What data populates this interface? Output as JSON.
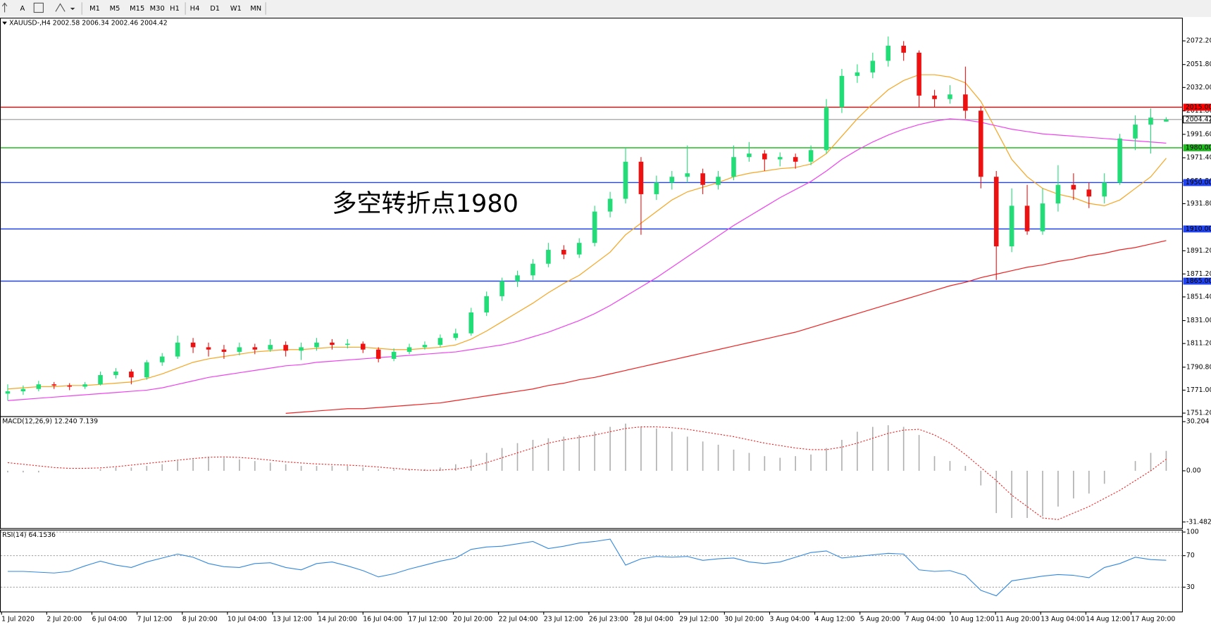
{
  "toolbar": {
    "font_button": "A",
    "timeframes": [
      "M1",
      "M5",
      "M15",
      "M30",
      "H1",
      "H4",
      "D1",
      "W1",
      "MN"
    ]
  },
  "chart_data": [
    {
      "type": "candlestick",
      "title": "XAUUSD-,H4  2002.58 2006.34 2002.46 2004.42",
      "up_color": "#22dd77",
      "down_color": "#ee1111",
      "candles": [
        [
          1768,
          1776,
          1762,
          1770
        ],
        [
          1770,
          1775,
          1767,
          1772
        ],
        [
          1772,
          1779,
          1770,
          1776
        ],
        [
          1776,
          1778,
          1772,
          1775
        ],
        [
          1775,
          1777,
          1771,
          1774
        ],
        [
          1774,
          1778,
          1772,
          1776
        ],
        [
          1776,
          1787,
          1775,
          1784
        ],
        [
          1784,
          1790,
          1781,
          1787
        ],
        [
          1787,
          1789,
          1776,
          1782
        ],
        [
          1782,
          1797,
          1780,
          1795
        ],
        [
          1795,
          1803,
          1792,
          1800
        ],
        [
          1800,
          1818,
          1798,
          1812
        ],
        [
          1812,
          1816,
          1803,
          1808
        ],
        [
          1808,
          1812,
          1800,
          1806
        ],
        [
          1806,
          1810,
          1798,
          1804
        ],
        [
          1804,
          1812,
          1801,
          1808
        ],
        [
          1808,
          1811,
          1802,
          1806
        ],
        [
          1806,
          1815,
          1804,
          1810
        ],
        [
          1810,
          1813,
          1800,
          1805
        ],
        [
          1805,
          1812,
          1797,
          1808
        ],
        [
          1808,
          1816,
          1805,
          1812
        ],
        [
          1812,
          1815,
          1806,
          1810
        ],
        [
          1810,
          1815,
          1807,
          1811
        ],
        [
          1811,
          1813,
          1803,
          1806
        ],
        [
          1806,
          1808,
          1795,
          1798
        ],
        [
          1798,
          1807,
          1796,
          1804
        ],
        [
          1804,
          1811,
          1802,
          1808
        ],
        [
          1808,
          1813,
          1806,
          1810
        ],
        [
          1810,
          1819,
          1808,
          1816
        ],
        [
          1816,
          1824,
          1814,
          1820
        ],
        [
          1820,
          1842,
          1818,
          1838
        ],
        [
          1838,
          1856,
          1835,
          1852
        ],
        [
          1852,
          1868,
          1848,
          1865
        ],
        [
          1865,
          1874,
          1860,
          1870
        ],
        [
          1870,
          1884,
          1866,
          1880
        ],
        [
          1880,
          1898,
          1877,
          1892
        ],
        [
          1892,
          1896,
          1884,
          1888
        ],
        [
          1888,
          1902,
          1885,
          1898
        ],
        [
          1898,
          1930,
          1895,
          1925
        ],
        [
          1925,
          1942,
          1920,
          1936
        ],
        [
          1936,
          1980,
          1932,
          1968
        ],
        [
          1968,
          1972,
          1905,
          1940
        ],
        [
          1940,
          1956,
          1935,
          1950
        ],
        [
          1950,
          1960,
          1944,
          1955
        ],
        [
          1955,
          1982,
          1950,
          1958
        ],
        [
          1958,
          1962,
          1940,
          1948
        ],
        [
          1948,
          1960,
          1944,
          1955
        ],
        [
          1955,
          1982,
          1952,
          1972
        ],
        [
          1972,
          1985,
          1968,
          1975
        ],
        [
          1975,
          1978,
          1960,
          1970
        ],
        [
          1970,
          1976,
          1964,
          1972
        ],
        [
          1972,
          1975,
          1962,
          1968
        ],
        [
          1968,
          1982,
          1965,
          1978
        ],
        [
          1978,
          2022,
          1975,
          2015
        ],
        [
          2015,
          2048,
          2010,
          2042
        ],
        [
          2042,
          2052,
          2036,
          2045
        ],
        [
          2045,
          2062,
          2040,
          2055
        ],
        [
          2055,
          2076,
          2050,
          2068
        ],
        [
          2068,
          2072,
          2055,
          2062
        ],
        [
          2062,
          2064,
          2015,
          2025
        ],
        [
          2025,
          2030,
          2015,
          2022
        ],
        [
          2022,
          2034,
          2018,
          2026
        ],
        [
          2026,
          2050,
          2005,
          2012
        ],
        [
          2012,
          2016,
          1945,
          1955
        ],
        [
          1955,
          1960,
          1866,
          1895
        ],
        [
          1895,
          1945,
          1890,
          1930
        ],
        [
          1930,
          1948,
          1905,
          1908
        ],
        [
          1908,
          1945,
          1905,
          1932
        ],
        [
          1932,
          1965,
          1925,
          1948
        ],
        [
          1948,
          1958,
          1935,
          1944
        ],
        [
          1944,
          1950,
          1928,
          1938
        ],
        [
          1938,
          1958,
          1932,
          1950
        ],
        [
          1950,
          1992,
          1948,
          1988
        ],
        [
          1988,
          2008,
          1978,
          2000
        ],
        [
          2000,
          2014,
          1975,
          2006
        ],
        [
          2002.58,
          2006.34,
          2002.46,
          2004.42
        ]
      ],
      "lines": [
        {
          "color": "#f5a623",
          "values": [
            1772,
            1773,
            1774,
            1774,
            1775,
            1775,
            1776,
            1777,
            1778,
            1781,
            1785,
            1790,
            1795,
            1798,
            1800,
            1802,
            1804,
            1805,
            1806,
            1806,
            1807,
            1808,
            1808,
            1808,
            1807,
            1806,
            1806,
            1807,
            1808,
            1810,
            1815,
            1822,
            1830,
            1838,
            1846,
            1855,
            1863,
            1870,
            1880,
            1890,
            1905,
            1915,
            1925,
            1935,
            1942,
            1946,
            1950,
            1955,
            1958,
            1960,
            1962,
            1963,
            1966,
            1975,
            1990,
            2005,
            2018,
            2030,
            2038,
            2043,
            2043,
            2041,
            2036,
            2020,
            1995,
            1970,
            1955,
            1945,
            1940,
            1937,
            1932,
            1930,
            1935,
            1945,
            1955,
            1971
          ]
        },
        {
          "color": "#ee44ee",
          "values": [
            1762,
            1763,
            1764,
            1765,
            1766,
            1767,
            1768,
            1769,
            1770,
            1771,
            1773,
            1776,
            1779,
            1782,
            1784,
            1786,
            1788,
            1790,
            1792,
            1793,
            1795,
            1796,
            1797,
            1798,
            1799,
            1800,
            1801,
            1802,
            1803,
            1804,
            1806,
            1808,
            1810,
            1813,
            1817,
            1821,
            1826,
            1831,
            1837,
            1844,
            1852,
            1860,
            1868,
            1877,
            1886,
            1895,
            1904,
            1913,
            1921,
            1929,
            1937,
            1944,
            1951,
            1960,
            1970,
            1978,
            1985,
            1991,
            1996,
            2000,
            2003,
            2005,
            2004,
            2002,
            1999,
            1996,
            1994,
            1992,
            1991,
            1990,
            1989,
            1988,
            1987,
            1986,
            1985,
            1984
          ]
        },
        {
          "color": "#ee2222",
          "values": [
            null,
            null,
            null,
            null,
            null,
            null,
            null,
            null,
            null,
            null,
            null,
            null,
            null,
            null,
            null,
            null,
            null,
            null,
            1751,
            1752,
            1753,
            1754,
            1755,
            1755,
            1756,
            1757,
            1758,
            1759,
            1760,
            1762,
            1764,
            1766,
            1768,
            1770,
            1772,
            1775,
            1777,
            1780,
            1782,
            1785,
            1788,
            1791,
            1794,
            1797,
            1800,
            1803,
            1806,
            1809,
            1812,
            1815,
            1818,
            1821,
            1825,
            1829,
            1833,
            1837,
            1841,
            1845,
            1849,
            1853,
            1857,
            1861,
            1864,
            1868,
            1871,
            1874,
            1877,
            1879,
            1882,
            1884,
            1887,
            1889,
            1892,
            1894,
            1897,
            1900
          ]
        }
      ],
      "levels": [
        {
          "value": 2015,
          "label": "2015.00",
          "color": "#ff0000"
        },
        {
          "value": 1980,
          "label": "1980.00",
          "color": "#22bb22"
        },
        {
          "value": 1950,
          "label": "1950.00",
          "color": "#2244ee"
        },
        {
          "value": 1910,
          "label": "1910.00",
          "color": "#2244ee"
        },
        {
          "value": 1865,
          "label": "1865.00",
          "color": "#2244ee"
        }
      ],
      "current_price": {
        "value": 2004.42,
        "label": "2004.42",
        "color": "#999999"
      },
      "annotation": "多空转折点1980",
      "ylim": [
        1749.2,
        2090.8
      ],
      "yticks": [
        {
          "value": 2072.2,
          "label": "2072.20"
        },
        {
          "value": 2051.8,
          "label": "2051.80"
        },
        {
          "value": 2032,
          "label": "2032.00"
        },
        {
          "value": 2011.8,
          "label": "2011.80"
        },
        {
          "value": 1991.6,
          "label": "1991.60"
        },
        {
          "value": 1971.4,
          "label": "1971.40"
        },
        {
          "value": 1951.2,
          "label": "1951.20"
        },
        {
          "value": 1931.8,
          "label": "1931.80"
        },
        {
          "value": 1891.2,
          "label": "1891.20"
        },
        {
          "value": 1871.2,
          "label": "1871.20"
        },
        {
          "value": 1851.4,
          "label": "1851.40"
        },
        {
          "value": 1831,
          "label": "1831.00"
        },
        {
          "value": 1811.2,
          "label": "1811.20"
        },
        {
          "value": 1790.8,
          "label": "1790.80"
        },
        {
          "value": 1771,
          "label": "1771.00"
        },
        {
          "value": 1751.2,
          "label": "1751.20"
        }
      ],
      "x_labels": [
        "1 Jul 2020",
        "2 Jul 20:00",
        "6 Jul 04:00",
        "7 Jul 12:00",
        "8 Jul 20:00",
        "10 Jul 04:00",
        "13 Jul 12:00",
        "14 Jul 20:00",
        "16 Jul 04:00",
        "17 Jul 12:00",
        "20 Jul 20:00",
        "22 Jul 04:00",
        "23 Jul 12:00",
        "26 Jul 23:00",
        "28 Jul 04:00",
        "29 Jul 12:00",
        "30 Jul 20:00",
        "3 Aug 04:00",
        "4 Aug 12:00",
        "5 Aug 20:00",
        "7 Aug 04:00",
        "10 Aug 12:00",
        "11 Aug 20:00",
        "13 Aug 04:00",
        "14 Aug 12:00",
        "17 Aug 20:00"
      ]
    },
    {
      "type": "macd",
      "title": "MACD(12,26,9) 12.240 7.139",
      "histogram_color": "#b0b0b0",
      "signal_color": "#ee2222",
      "histogram": [
        -1,
        -1,
        -1,
        0,
        0,
        0,
        1,
        2,
        2,
        3,
        4,
        6,
        7,
        8,
        8,
        7,
        6,
        5,
        4,
        3,
        3,
        3,
        3,
        2,
        1,
        1,
        1,
        1,
        2,
        4,
        7,
        11,
        14,
        17,
        19,
        20,
        21,
        22,
        24,
        27,
        29,
        27,
        26,
        24,
        21,
        18,
        16,
        13,
        11,
        9,
        8,
        9,
        10,
        14,
        19,
        24,
        27,
        28,
        27,
        22,
        9,
        6,
        3,
        -9,
        -26,
        -29,
        -29,
        -28,
        -22,
        -17,
        -14,
        -8,
        0,
        6,
        11,
        12.24
      ],
      "signal": [
        5,
        4,
        3,
        2,
        1.5,
        1.5,
        1.8,
        2.5,
        3.5,
        4.5,
        5.5,
        6.5,
        7.5,
        8.3,
        8.5,
        8.2,
        7.5,
        6.5,
        5.5,
        4.8,
        4.2,
        3.8,
        3.5,
        3,
        2.3,
        1.5,
        0.8,
        0.3,
        0.4,
        1,
        2.5,
        5,
        8,
        11,
        14,
        17,
        19,
        20.5,
        22,
        24,
        26,
        27,
        27,
        26.5,
        25.5,
        24,
        22.5,
        21,
        19,
        17,
        15.5,
        14,
        13,
        13,
        14.5,
        17,
        20,
        23,
        25,
        25.5,
        22,
        17,
        10,
        2,
        -6,
        -15,
        -22,
        -29,
        -30,
        -26,
        -22,
        -17,
        -12,
        -6,
        0,
        7.139
      ],
      "ylim": [
        -34.8,
        32.6
      ],
      "yticks": [
        30.204,
        {
          "value": 0,
          "label": "0.00"
        },
        -31.482
      ]
    },
    {
      "type": "line",
      "title": "RSI(14) 64.1536",
      "color": "#3388dd",
      "grid": "dotted",
      "values": [
        50,
        50,
        49,
        48,
        50,
        57,
        63,
        58,
        55,
        62,
        67,
        72,
        68,
        60,
        56,
        55,
        60,
        61,
        55,
        52,
        60,
        62,
        57,
        51,
        43,
        47,
        53,
        58,
        63,
        67,
        78,
        81,
        82,
        85,
        88,
        79,
        82,
        86,
        88,
        91,
        58,
        66,
        69,
        68,
        69,
        64,
        66,
        67,
        62,
        60,
        62,
        68,
        74,
        76,
        67,
        69,
        71,
        73,
        72,
        52,
        50,
        51,
        45,
        26,
        19,
        38,
        41,
        44,
        46,
        45,
        42,
        55,
        60,
        68,
        65,
        64.1536
      ],
      "ylim": [
        0,
        101
      ],
      "yticks": [
        100,
        70,
        30
      ]
    }
  ]
}
